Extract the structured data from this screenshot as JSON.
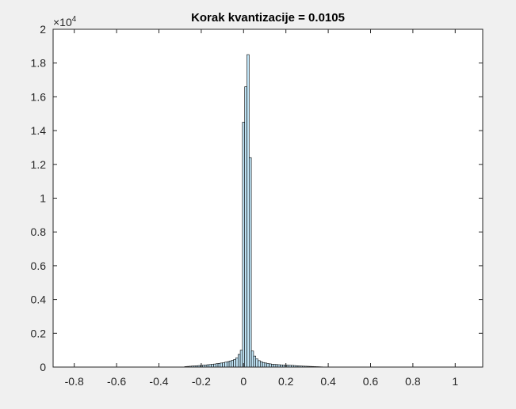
{
  "chart_data": {
    "type": "bar",
    "title": "Korak kvantizacije = 0.0105",
    "xlabel": "",
    "ylabel": "",
    "xlim": [
      -0.9,
      1.13
    ],
    "ylim": [
      0,
      20000
    ],
    "y_exponent_label": "×10",
    "y_exponent_power": "4",
    "xticks": [
      -0.8,
      -0.6,
      -0.4,
      -0.2,
      0,
      0.2,
      0.4,
      0.6,
      0.8,
      1
    ],
    "xtick_labels": [
      "-0.8",
      "-0.6",
      "-0.4",
      "-0.2",
      "0",
      "0.2",
      "0.4",
      "0.6",
      "0.8",
      "1"
    ],
    "yticks": [
      0,
      2000,
      4000,
      6000,
      8000,
      10000,
      12000,
      14000,
      16000,
      18000,
      20000
    ],
    "ytick_labels": [
      "0",
      "0.2",
      "0.4",
      "0.6",
      "0.8",
      "1",
      "1.2",
      "1.4",
      "1.6",
      "1.8",
      "2"
    ],
    "bin_width": 0.0105,
    "bins": [
      {
        "x": -0.273,
        "y": 30
      },
      {
        "x": -0.2625,
        "y": 40
      },
      {
        "x": -0.252,
        "y": 50
      },
      {
        "x": -0.2415,
        "y": 60
      },
      {
        "x": -0.231,
        "y": 70
      },
      {
        "x": -0.2205,
        "y": 80
      },
      {
        "x": -0.21,
        "y": 90
      },
      {
        "x": -0.1995,
        "y": 100
      },
      {
        "x": -0.189,
        "y": 110
      },
      {
        "x": -0.1785,
        "y": 120
      },
      {
        "x": -0.168,
        "y": 140
      },
      {
        "x": -0.1575,
        "y": 150
      },
      {
        "x": -0.147,
        "y": 170
      },
      {
        "x": -0.1365,
        "y": 180
      },
      {
        "x": -0.126,
        "y": 200
      },
      {
        "x": -0.1155,
        "y": 220
      },
      {
        "x": -0.105,
        "y": 240
      },
      {
        "x": -0.0945,
        "y": 260
      },
      {
        "x": -0.084,
        "y": 290
      },
      {
        "x": -0.0735,
        "y": 320
      },
      {
        "x": -0.063,
        "y": 360
      },
      {
        "x": -0.0525,
        "y": 400
      },
      {
        "x": -0.042,
        "y": 450
      },
      {
        "x": -0.0315,
        "y": 550
      },
      {
        "x": -0.021,
        "y": 750
      },
      {
        "x": -0.0105,
        "y": 1000
      },
      {
        "x": 0.0,
        "y": 14500
      },
      {
        "x": 0.0105,
        "y": 16600
      },
      {
        "x": 0.021,
        "y": 18500
      },
      {
        "x": 0.0315,
        "y": 12400
      },
      {
        "x": 0.042,
        "y": 950
      },
      {
        "x": 0.0525,
        "y": 650
      },
      {
        "x": 0.063,
        "y": 480
      },
      {
        "x": 0.0735,
        "y": 380
      },
      {
        "x": 0.084,
        "y": 320
      },
      {
        "x": 0.0945,
        "y": 270
      },
      {
        "x": 0.105,
        "y": 240
      },
      {
        "x": 0.1155,
        "y": 210
      },
      {
        "x": 0.126,
        "y": 190
      },
      {
        "x": 0.1365,
        "y": 170
      },
      {
        "x": 0.147,
        "y": 160
      },
      {
        "x": 0.1575,
        "y": 150
      },
      {
        "x": 0.168,
        "y": 140
      },
      {
        "x": 0.1785,
        "y": 130
      },
      {
        "x": 0.189,
        "y": 120
      },
      {
        "x": 0.1995,
        "y": 115
      },
      {
        "x": 0.21,
        "y": 110
      },
      {
        "x": 0.2205,
        "y": 105
      },
      {
        "x": 0.231,
        "y": 100
      },
      {
        "x": 0.2415,
        "y": 90
      },
      {
        "x": 0.252,
        "y": 80
      },
      {
        "x": 0.2625,
        "y": 70
      },
      {
        "x": 0.273,
        "y": 60
      },
      {
        "x": 0.2835,
        "y": 55
      },
      {
        "x": 0.294,
        "y": 50
      },
      {
        "x": 0.3045,
        "y": 45
      },
      {
        "x": 0.315,
        "y": 40
      },
      {
        "x": 0.3255,
        "y": 35
      },
      {
        "x": 0.336,
        "y": 30
      },
      {
        "x": 0.3465,
        "y": 25
      },
      {
        "x": 0.357,
        "y": 20
      },
      {
        "x": 0.3675,
        "y": 15
      }
    ],
    "grid": false,
    "colors": {
      "bar_fill": "#bfe3f5",
      "bar_edge": "#000000",
      "axes_bg": "#ffffff",
      "figure_bg": "#f0f0f0"
    }
  }
}
